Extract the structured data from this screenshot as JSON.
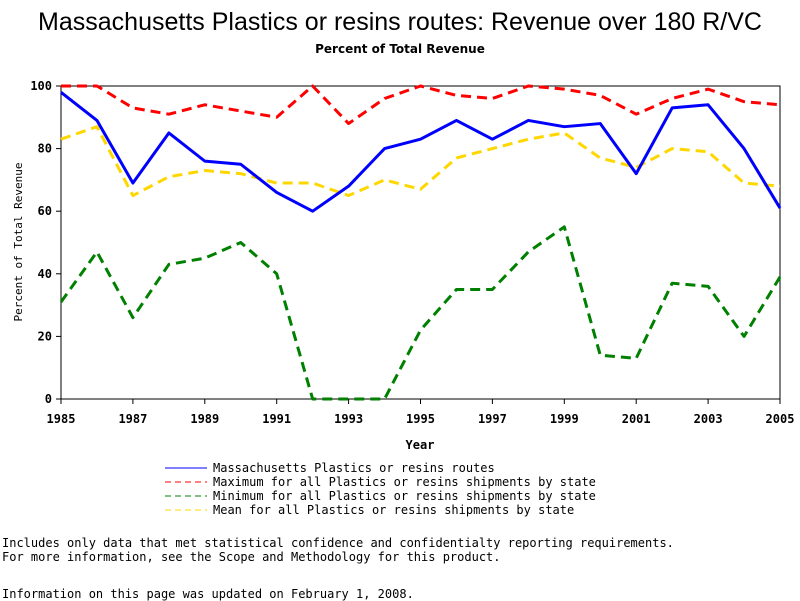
{
  "title": "Massachusetts Plastics or resins routes: Revenue over 180 R/VC",
  "subtitle": "Percent of Total Revenue",
  "footer": {
    "note_line1": "Includes only data that met statistical confidence and confidentialty reporting requirements.",
    "note_line2": "For more information, see the Scope and Methodology for this product.",
    "updated": "Information on this page was updated on February 1, 2008."
  },
  "chart_data": {
    "type": "line",
    "title": "Massachusetts Plastics or resins routes: Revenue over 180 R/VC",
    "subtitle": "Percent of Total Revenue",
    "xlabel": "Year",
    "ylabel": "Percent of Total Revenue",
    "xlim": [
      1985,
      2005
    ],
    "ylim": [
      0,
      100
    ],
    "x_ticks": [
      "1985",
      "1987",
      "1989",
      "1991",
      "1993",
      "1995",
      "1997",
      "1999",
      "2001",
      "2003",
      "2005"
    ],
    "y_ticks": [
      "0",
      "20",
      "40",
      "60",
      "80",
      "100"
    ],
    "grid": false,
    "legend_position": "bottom",
    "x": [
      1985,
      1986,
      1987,
      1988,
      1989,
      1990,
      1991,
      1992,
      1993,
      1994,
      1995,
      1996,
      1997,
      1998,
      1999,
      2000,
      2001,
      2002,
      2003,
      2004,
      2005
    ],
    "series": [
      {
        "name": "Massachusetts Plastics or resins routes",
        "color": "#0000ff",
        "style": "solid",
        "values": [
          98,
          89,
          69,
          85,
          76,
          75,
          66,
          60,
          68,
          80,
          83,
          89,
          83,
          89,
          87,
          88,
          72,
          93,
          94,
          80,
          61
        ]
      },
      {
        "name": "Maximum for all Plastics or resins shipments by state",
        "color": "#ff0000",
        "style": "dashed",
        "values": [
          100,
          100,
          93,
          91,
          94,
          92,
          90,
          100,
          88,
          96,
          100,
          97,
          96,
          100,
          99,
          97,
          91,
          96,
          99,
          95,
          94
        ]
      },
      {
        "name": "Minimum for all Plastics or resins shipments by state",
        "color": "#008000",
        "style": "dashed",
        "values": [
          31,
          47,
          26,
          43,
          45,
          50,
          40,
          0,
          0,
          0,
          22,
          35,
          35,
          47,
          55,
          14,
          13,
          37,
          36,
          20,
          39
        ]
      },
      {
        "name": "Mean for all Plastics or resins shipments by state",
        "color": "#ffd700",
        "style": "dashed",
        "values": [
          83,
          87,
          65,
          71,
          73,
          72,
          69,
          69,
          65,
          70,
          67,
          77,
          80,
          83,
          85,
          77,
          74,
          80,
          79,
          69,
          68
        ]
      }
    ]
  }
}
